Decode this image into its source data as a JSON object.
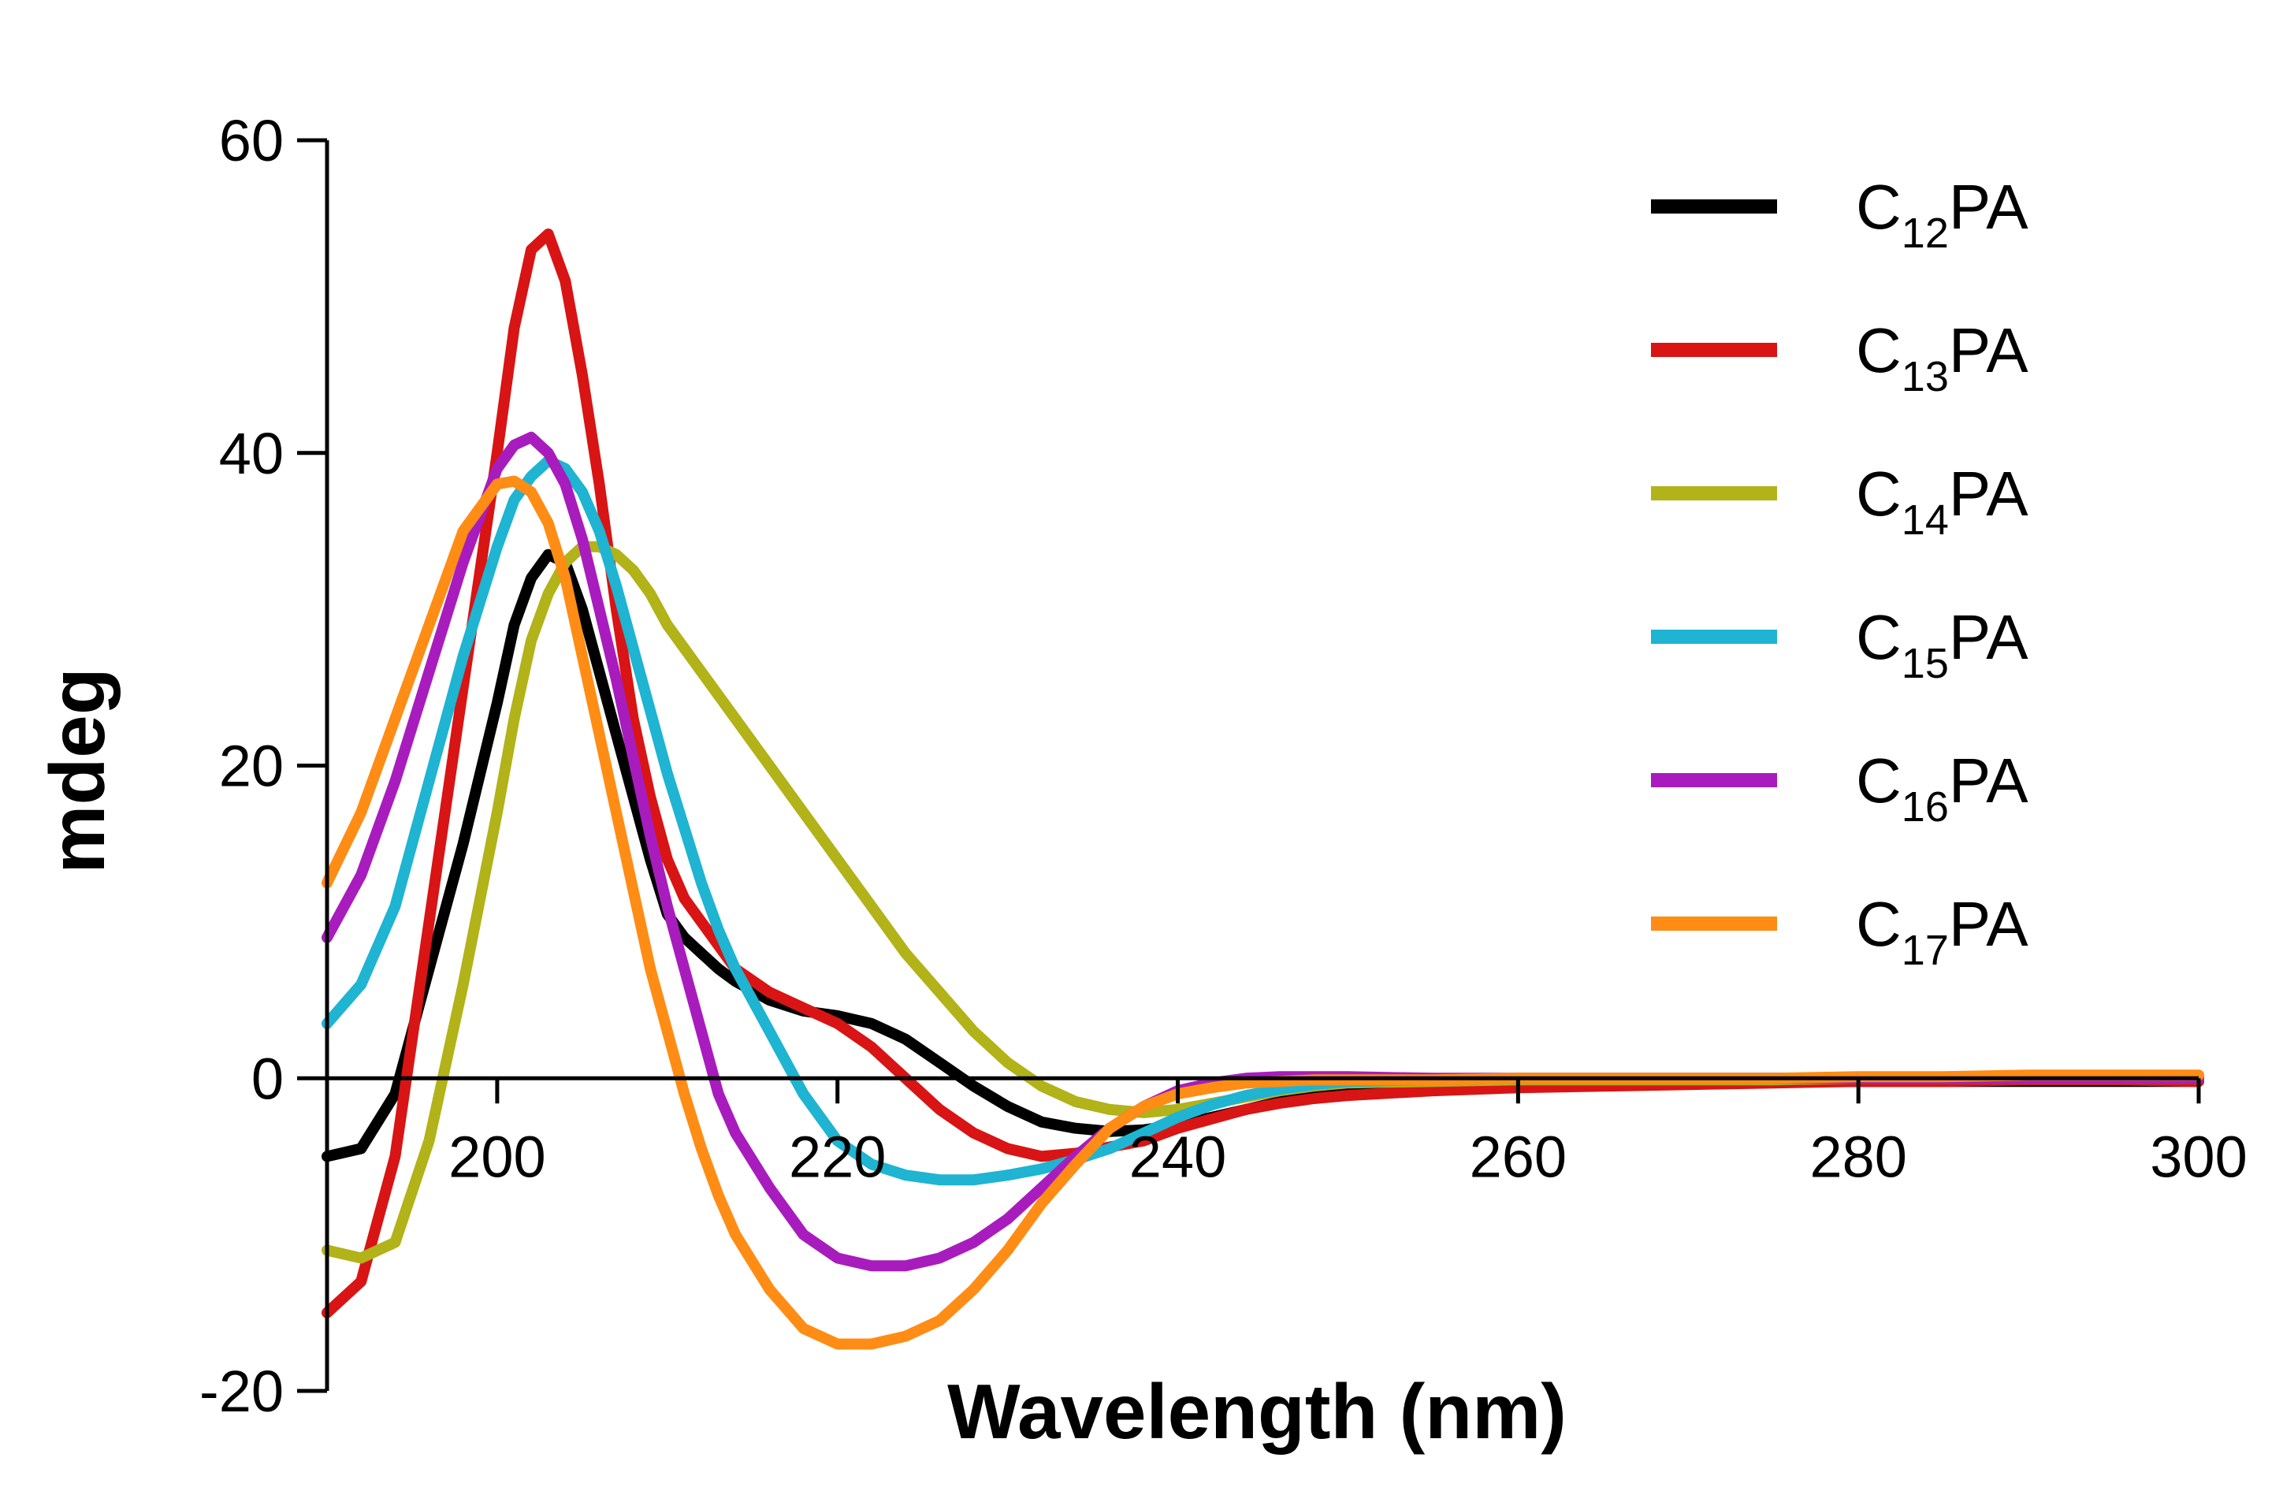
{
  "chart_data": {
    "type": "line",
    "title": "",
    "xlabel": "Wavelength (nm)",
    "ylabel": "mdeg",
    "xlim": [
      190,
      300
    ],
    "ylim": [
      -20,
      60
    ],
    "xticks": [
      200,
      220,
      240,
      260,
      280,
      300
    ],
    "yticks": [
      -20,
      0,
      20,
      40,
      60
    ],
    "grid": false,
    "legend_position": "top-right",
    "x": [
      190,
      192,
      194,
      196,
      198,
      200,
      201,
      202,
      203,
      204,
      205,
      206,
      207,
      208,
      209,
      210,
      211,
      212,
      213,
      214,
      216,
      218,
      220,
      222,
      224,
      226,
      228,
      230,
      232,
      234,
      236,
      238,
      240,
      242,
      244,
      246,
      248,
      250,
      255,
      260,
      265,
      270,
      275,
      280,
      285,
      290,
      295,
      300
    ],
    "series": [
      {
        "name": "C",
        "sub": "12",
        "suffix": "PA",
        "color": "#000000",
        "values": [
          -5,
          -4.5,
          -1,
          7,
          15,
          24,
          29,
          32,
          33.5,
          33,
          30,
          26,
          22,
          18,
          14,
          10.5,
          9,
          8,
          7,
          6.2,
          5,
          4.3,
          4,
          3.5,
          2.5,
          1,
          -0.5,
          -1.8,
          -2.8,
          -3.2,
          -3.4,
          -3.3,
          -3,
          -2.5,
          -2,
          -1.5,
          -1,
          -0.8,
          -0.5,
          -0.4,
          -0.3,
          -0.3,
          -0.2,
          -0.2,
          -0.2,
          -0.2,
          -0.2,
          -0.2
        ]
      },
      {
        "name": "C",
        "sub": "13",
        "suffix": "PA",
        "color": "#d81414",
        "values": [
          -15,
          -13,
          -5,
          10,
          25,
          40,
          48,
          53,
          54,
          51,
          45,
          38,
          30,
          23,
          18,
          14,
          11.5,
          10,
          8.5,
          7,
          5.5,
          4.5,
          3.5,
          2,
          0,
          -2,
          -3.5,
          -4.5,
          -5,
          -4.8,
          -4.4,
          -4,
          -3.2,
          -2.6,
          -2,
          -1.6,
          -1.3,
          -1.1,
          -0.8,
          -0.6,
          -0.5,
          -0.4,
          -0.3,
          -0.2,
          -0.2,
          -0.1,
          -0.1,
          -0.2
        ]
      },
      {
        "name": "C",
        "sub": "14",
        "suffix": "PA",
        "color": "#b2b219",
        "values": [
          -11,
          -11.5,
          -10.5,
          -4,
          6,
          17,
          23,
          28,
          31,
          33,
          34,
          34,
          33.5,
          32.5,
          31,
          29,
          27.5,
          26,
          24.5,
          23,
          20,
          17,
          14,
          11,
          8,
          5.5,
          3,
          1,
          -0.5,
          -1.5,
          -2,
          -2.2,
          -2,
          -1.6,
          -1.2,
          -0.8,
          -0.5,
          -0.3,
          -0.2,
          -0.1,
          -0.1,
          -0.1,
          -0.1,
          0,
          0,
          0,
          0,
          0
        ]
      },
      {
        "name": "C",
        "sub": "15",
        "suffix": "PA",
        "color": "#1eb4d2",
        "values": [
          3.5,
          6,
          11,
          19,
          27,
          34,
          37,
          38.5,
          39.5,
          39,
          37.5,
          35,
          31.5,
          27.5,
          23.5,
          19.5,
          16,
          12.5,
          9.5,
          7,
          3,
          -1,
          -4,
          -5.5,
          -6.2,
          -6.5,
          -6.5,
          -6.2,
          -5.8,
          -5.2,
          -4.5,
          -3.5,
          -2.5,
          -1.7,
          -1.1,
          -0.7,
          -0.4,
          -0.2,
          -0.1,
          0,
          0,
          0,
          0,
          0,
          0,
          0,
          0,
          0
        ]
      },
      {
        "name": "C",
        "sub": "16",
        "suffix": "PA",
        "color": "#a81cbe",
        "values": [
          9,
          13,
          19,
          26,
          33,
          39,
          40.5,
          41,
          40,
          38,
          34.5,
          30,
          25.5,
          20.5,
          15.5,
          11,
          7,
          3,
          -1,
          -3.5,
          -7,
          -10,
          -11.5,
          -12,
          -12,
          -11.5,
          -10.5,
          -9,
          -7,
          -5,
          -3.2,
          -1.8,
          -0.8,
          -0.3,
          0,
          0.1,
          0.1,
          0.1,
          0,
          0,
          0,
          0,
          0,
          0,
          0,
          0,
          0,
          0
        ]
      },
      {
        "name": "C",
        "sub": "17",
        "suffix": "PA",
        "color": "#ff8c14",
        "values": [
          12.5,
          17,
          23,
          29,
          35,
          38,
          38.2,
          37.5,
          35.5,
          32,
          27,
          22,
          17,
          12,
          7,
          3,
          -1,
          -4.5,
          -7.5,
          -10,
          -13.5,
          -16,
          -17,
          -17,
          -16.5,
          -15.5,
          -13.5,
          -11,
          -8,
          -5.5,
          -3.2,
          -1.8,
          -1,
          -0.6,
          -0.3,
          -0.2,
          -0.1,
          -0.1,
          -0.1,
          0,
          0,
          0,
          0,
          0.1,
          0.1,
          0.2,
          0.2,
          0.2
        ]
      }
    ]
  }
}
